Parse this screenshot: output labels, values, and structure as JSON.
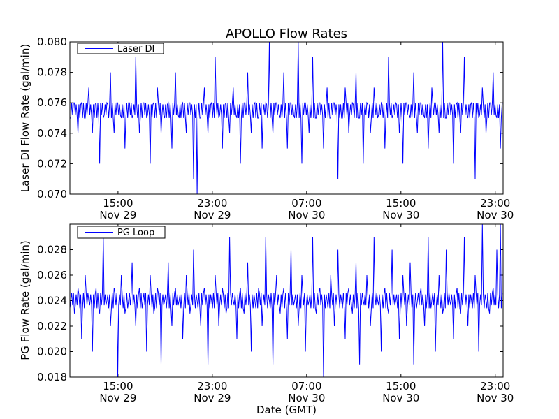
{
  "chart_data": [
    {
      "type": "line",
      "title": "APOLLO Flow Rates",
      "xlabel": "",
      "ylabel": "Laser DI Flow Rate (gal/min)",
      "ylim": [
        0.07,
        0.08
      ],
      "yticks": [
        {
          "value": 0.07,
          "label": "0.070"
        },
        {
          "value": 0.072,
          "label": "0.072"
        },
        {
          "value": 0.074,
          "label": "0.074"
        },
        {
          "value": 0.076,
          "label": "0.076"
        },
        {
          "value": 0.078,
          "label": "0.078"
        },
        {
          "value": 0.08,
          "label": "0.080"
        }
      ],
      "xlim": [
        "2012-11-29T10:55",
        "2012-11-30T23:40"
      ],
      "xticks": [
        {
          "time": "2012-11-29T15:00",
          "label1": "15:00",
          "label2": "Nov 29"
        },
        {
          "time": "2012-11-29T23:00",
          "label1": "23:00",
          "label2": "Nov 29"
        },
        {
          "time": "2012-11-30T07:00",
          "label1": "07:00",
          "label2": "Nov 30"
        },
        {
          "time": "2012-11-30T15:00",
          "label1": "15:00",
          "label2": "Nov 30"
        },
        {
          "time": "2012-11-30T23:00",
          "label1": "23:00",
          "label2": "Nov 30"
        }
      ],
      "legend": {
        "position": "top-left",
        "entries": [
          "Laser DI"
        ]
      },
      "grid": false,
      "series": [
        {
          "name": "Laser DI",
          "color": "#0000ff",
          "baseline": 0.0755,
          "values": [
            0.075,
            0.076,
            0.074,
            0.076,
            0.075,
            0.077,
            0.074,
            0.076,
            0.072,
            0.075,
            0.076,
            0.078,
            0.074,
            0.076,
            0.075,
            0.073,
            0.076,
            0.075,
            0.079,
            0.074,
            0.076,
            0.075,
            0.072,
            0.076,
            0.077,
            0.074,
            0.075,
            0.076,
            0.073,
            0.078,
            0.075,
            0.076,
            0.074,
            0.076,
            0.071,
            0.07,
            0.075,
            0.077,
            0.074,
            0.076,
            0.079,
            0.075,
            0.073,
            0.076,
            0.074,
            0.077,
            0.075,
            0.072,
            0.076,
            0.078,
            0.074,
            0.076,
            0.075,
            0.073,
            0.076,
            0.08,
            0.074,
            0.076,
            0.075,
            0.078,
            0.073,
            0.076,
            0.075,
            0.08,
            0.072,
            0.076,
            0.074,
            0.079,
            0.075,
            0.076,
            0.073,
            0.077,
            0.075,
            0.076,
            0.071,
            0.075,
            0.077,
            0.074,
            0.076,
            0.078,
            0.075,
            0.072,
            0.076,
            0.074,
            0.077,
            0.075,
            0.076,
            0.073,
            0.079,
            0.075,
            0.076,
            0.074,
            0.072,
            0.076,
            0.075,
            0.078,
            0.074,
            0.076,
            0.075,
            0.073,
            0.077,
            0.076,
            0.074,
            0.08,
            0.075,
            0.076,
            0.072,
            0.076,
            0.074,
            0.079,
            0.075,
            0.076,
            0.071,
            0.075,
            0.077,
            0.074,
            0.076,
            0.078,
            0.075,
            0.073
          ]
        }
      ]
    },
    {
      "type": "line",
      "title": "",
      "xlabel": "Date (GMT)",
      "ylabel": "PG Flow Rate (gal/min)",
      "ylim": [
        0.018,
        0.03
      ],
      "yticks": [
        {
          "value": 0.018,
          "label": "0.018"
        },
        {
          "value": 0.02,
          "label": "0.020"
        },
        {
          "value": 0.022,
          "label": "0.022"
        },
        {
          "value": 0.024,
          "label": "0.024"
        },
        {
          "value": 0.026,
          "label": "0.026"
        },
        {
          "value": 0.028,
          "label": "0.028"
        }
      ],
      "xlim": [
        "2012-11-29T10:55",
        "2012-11-30T23:40"
      ],
      "xticks": [
        {
          "time": "2012-11-29T15:00",
          "label1": "15:00",
          "label2": "Nov 29"
        },
        {
          "time": "2012-11-29T23:00",
          "label1": "23:00",
          "label2": "Nov 29"
        },
        {
          "time": "2012-11-30T07:00",
          "label1": "07:00",
          "label2": "Nov 30"
        },
        {
          "time": "2012-11-30T15:00",
          "label1": "15:00",
          "label2": "Nov 30"
        },
        {
          "time": "2012-11-30T23:00",
          "label1": "23:00",
          "label2": "Nov 30"
        }
      ],
      "legend": {
        "position": "top-left",
        "entries": [
          "PG Loop"
        ]
      },
      "grid": false,
      "series": [
        {
          "name": "PG Loop",
          "color": "#0000ff",
          "baseline": 0.024,
          "values": [
            0.024,
            0.023,
            0.025,
            0.021,
            0.026,
            0.024,
            0.02,
            0.025,
            0.023,
            0.029,
            0.024,
            0.022,
            0.025,
            0.018,
            0.026,
            0.023,
            0.024,
            0.027,
            0.022,
            0.025,
            0.024,
            0.02,
            0.026,
            0.023,
            0.025,
            0.019,
            0.024,
            0.027,
            0.022,
            0.025,
            0.024,
            0.021,
            0.026,
            0.023,
            0.028,
            0.024,
            0.022,
            0.025,
            0.019,
            0.024,
            0.026,
            0.022,
            0.025,
            0.023,
            0.029,
            0.024,
            0.021,
            0.025,
            0.023,
            0.027,
            0.02,
            0.024,
            0.025,
            0.022,
            0.029,
            0.024,
            0.019,
            0.026,
            0.023,
            0.025,
            0.021,
            0.028,
            0.024,
            0.022,
            0.026,
            0.02,
            0.024,
            0.029,
            0.023,
            0.025,
            0.018,
            0.024,
            0.026,
            0.022,
            0.028,
            0.024,
            0.021,
            0.025,
            0.023,
            0.027,
            0.019,
            0.024,
            0.026,
            0.022,
            0.029,
            0.024,
            0.02,
            0.025,
            0.023,
            0.028,
            0.024,
            0.021,
            0.026,
            0.022,
            0.027,
            0.019,
            0.024,
            0.025,
            0.022,
            0.029,
            0.024,
            0.02,
            0.026,
            0.023,
            0.028,
            0.024,
            0.021,
            0.025,
            0.023,
            0.029,
            0.022,
            0.024,
            0.026,
            0.02,
            0.03,
            0.024,
            0.023,
            0.025,
            0.028,
            0.03
          ]
        }
      ]
    }
  ]
}
